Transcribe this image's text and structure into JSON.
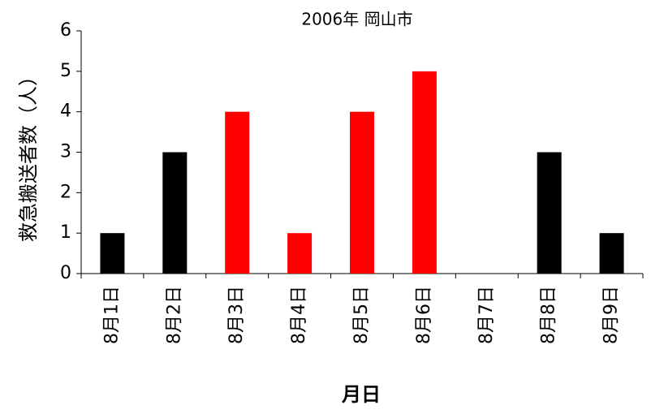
{
  "chart_data": {
    "type": "bar",
    "title": "2006年 岡山市",
    "x_label": "月日",
    "y_label": "救急搬送者数（人）",
    "categories": [
      "8月1日",
      "8月2日",
      "8月3日",
      "8月4日",
      "8月5日",
      "8月6日",
      "8月7日",
      "8月8日",
      "8月9日"
    ],
    "values": [
      1,
      3,
      4,
      1,
      4,
      5,
      0,
      3,
      1
    ],
    "colors": [
      "#000000",
      "#000000",
      "#ff0000",
      "#ff0000",
      "#ff0000",
      "#ff0000",
      "#000000",
      "#000000",
      "#000000"
    ],
    "ylim": [
      0,
      6
    ],
    "yticks": [
      0,
      1,
      2,
      3,
      4,
      5,
      6
    ],
    "grid": false
  }
}
